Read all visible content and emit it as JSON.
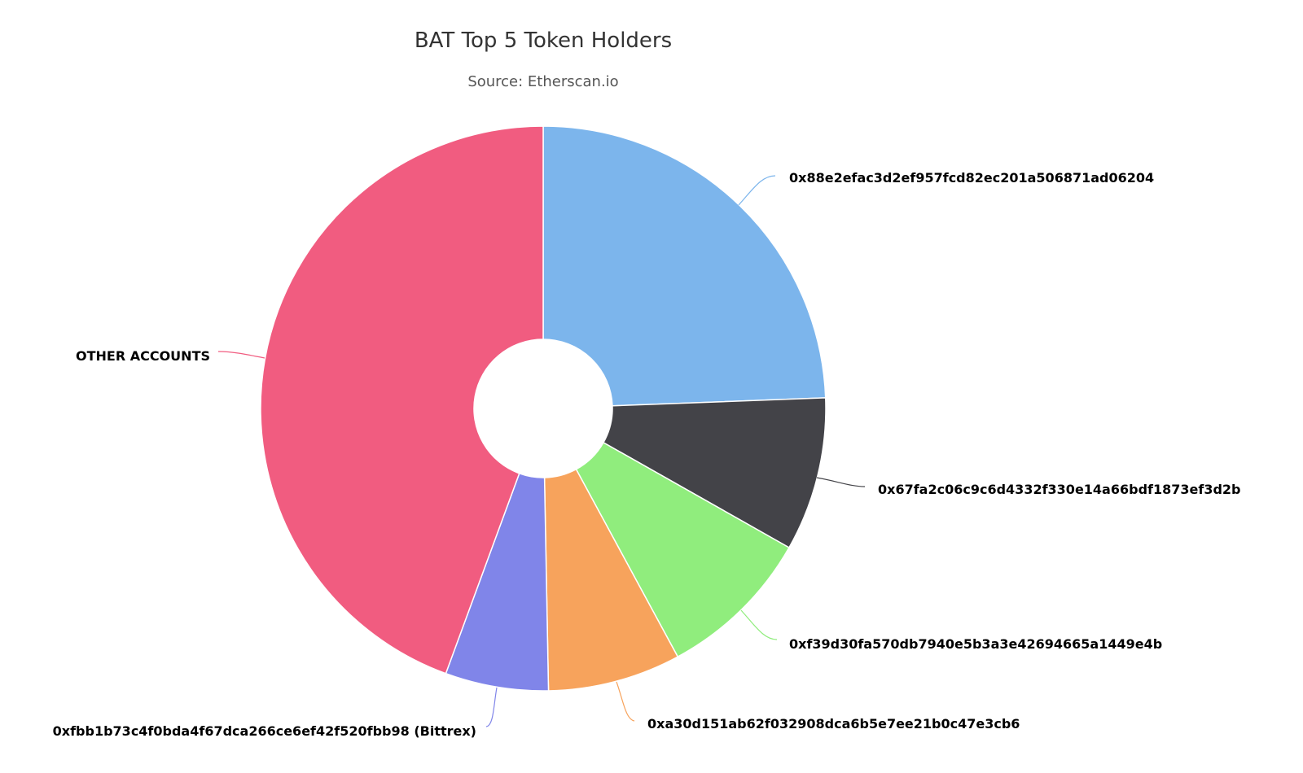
{
  "chart_data": {
    "type": "pie",
    "variant": "donut",
    "title": "BAT Top 5 Token Holders",
    "subtitle": "Source: Etherscan.io",
    "unit": "percent (estimated)",
    "slices": [
      {
        "name": "0x88e2efac3d2ef957fcd82ec201a506871ad06204",
        "value": 24.4,
        "color": "#7cb5ec"
      },
      {
        "name": "0x67fa2c06c9c6d4332f330e14a66bdf1873ef3d2b",
        "value": 8.8,
        "color": "#434348"
      },
      {
        "name": "0xf39d30fa570db7940e5b3a3e42694665a1449e4b",
        "value": 8.9,
        "color": "#90ed7d"
      },
      {
        "name": "0xa30d151ab62f032908dca6b5e7ee21b0c47e3cb6",
        "value": 7.6,
        "color": "#f7a35c"
      },
      {
        "name": "0xfbb1b73c4f0bda4f67dca266ce6ef42f520fbb98 (Bittrex)",
        "value": 5.9,
        "color": "#8085e9"
      },
      {
        "name": "OTHER ACCOUNTS",
        "value": 44.4,
        "color": "#f15c80"
      }
    ],
    "legend": "none",
    "data_labels": "outside with connectors"
  }
}
